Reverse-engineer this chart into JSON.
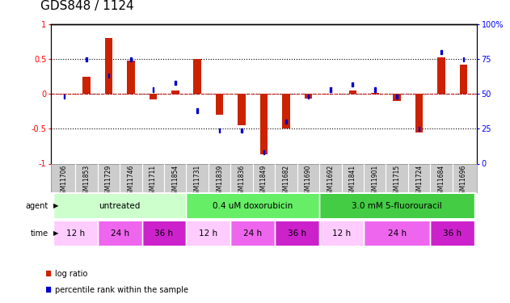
{
  "title": "GDS848 / 1124",
  "samples": [
    "GSM11706",
    "GSM11853",
    "GSM11729",
    "GSM11746",
    "GSM11711",
    "GSM11854",
    "GSM11731",
    "GSM11839",
    "GSM11836",
    "GSM11849",
    "GSM11682",
    "GSM11690",
    "GSM11692",
    "GSM11841",
    "GSM11901",
    "GSM11715",
    "GSM11724",
    "GSM11684",
    "GSM11696"
  ],
  "log_ratios": [
    0.0,
    0.25,
    0.8,
    0.48,
    -0.08,
    0.05,
    0.5,
    -0.3,
    -0.45,
    -0.87,
    -0.5,
    -0.07,
    0.0,
    0.05,
    0.02,
    -0.1,
    -0.55,
    0.52,
    0.42
  ],
  "percentile_ranks": [
    48,
    75,
    63,
    75,
    53,
    58,
    38,
    24,
    24,
    8,
    30,
    48,
    53,
    57,
    53,
    48,
    25,
    80,
    75
  ],
  "ylim_left": [
    -1,
    1
  ],
  "ylim_right": [
    0,
    100
  ],
  "hline_positions": [
    0.5,
    0.0,
    -0.5
  ],
  "agent_groups": [
    {
      "label": "untreated",
      "start": 0,
      "end": 6,
      "color": "#ccffcc"
    },
    {
      "label": "0.4 uM doxorubicin",
      "start": 6,
      "end": 12,
      "color": "#66ee66"
    },
    {
      "label": "3.0 mM 5-fluorouracil",
      "start": 12,
      "end": 19,
      "color": "#44cc44"
    }
  ],
  "time_groups": [
    {
      "label": "12 h",
      "start": 0,
      "end": 2,
      "color": "#ffccff"
    },
    {
      "label": "24 h",
      "start": 2,
      "end": 4,
      "color": "#ee66ee"
    },
    {
      "label": "36 h",
      "start": 4,
      "end": 6,
      "color": "#cc22cc"
    },
    {
      "label": "12 h",
      "start": 6,
      "end": 8,
      "color": "#ffccff"
    },
    {
      "label": "24 h",
      "start": 8,
      "end": 10,
      "color": "#ee66ee"
    },
    {
      "label": "36 h",
      "start": 10,
      "end": 12,
      "color": "#cc22cc"
    },
    {
      "label": "12 h",
      "start": 12,
      "end": 14,
      "color": "#ffccff"
    },
    {
      "label": "24 h",
      "start": 14,
      "end": 17,
      "color": "#ee66ee"
    },
    {
      "label": "36 h",
      "start": 17,
      "end": 19,
      "color": "#cc22cc"
    }
  ],
  "bar_color": "#cc2200",
  "dot_color": "#0000cc",
  "zero_line_color": "#cc0000",
  "bg_color": "#ffffff",
  "sample_label_bg": "#cccccc"
}
